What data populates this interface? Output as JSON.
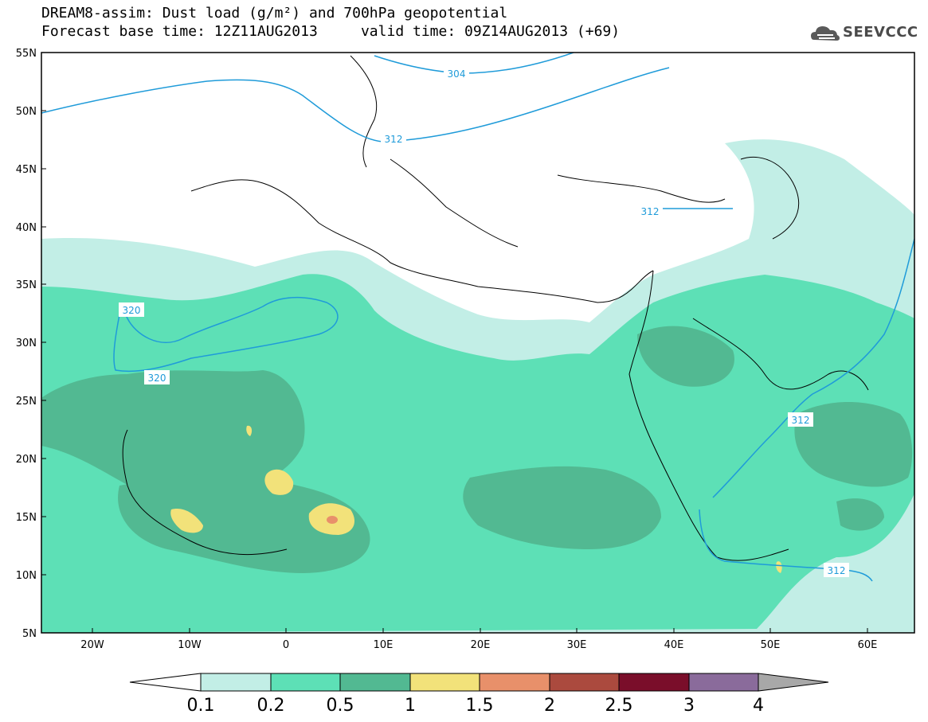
{
  "title": {
    "line1": "DREAM8-assim: Dust load (g/m²) and 700hPa geopotential",
    "line2": "Forecast base time: 12Z11AUG2013     valid time: 09Z14AUG2013 (+69)"
  },
  "logo": {
    "text": "SEEVCCC",
    "icon": "cloud-icon"
  },
  "axes": {
    "lat_labels": [
      "55N",
      "50N",
      "45N",
      "40N",
      "35N",
      "30N",
      "25N",
      "20N",
      "15N",
      "10N",
      "5N"
    ],
    "lon_labels": [
      "20W",
      "10W",
      "0",
      "10E",
      "20E",
      "30E",
      "40E",
      "50E",
      "60E"
    ]
  },
  "contour_labels": [
    "304",
    "312",
    "312",
    "320",
    "320",
    "312",
    "312"
  ],
  "colorbar": {
    "labels": [
      "0.1",
      "0.2",
      "0.5",
      "1",
      "1.5",
      "2",
      "2.5",
      "3",
      "4"
    ],
    "colors": [
      "#ffffff",
      "#c2eee6",
      "#5de0b6",
      "#52b992",
      "#f2e27a",
      "#e8906a",
      "#ab4a3e",
      "#7a0e2a",
      "#8a6b9b",
      "#a8a8a8"
    ]
  },
  "colors": {
    "contour_line": "#1f9bd9",
    "dust_01": "#c2eee6",
    "dust_02": "#5de0b6",
    "dust_05": "#52b992",
    "dust_1": "#f2e27a",
    "dust_15": "#e8906a"
  }
}
